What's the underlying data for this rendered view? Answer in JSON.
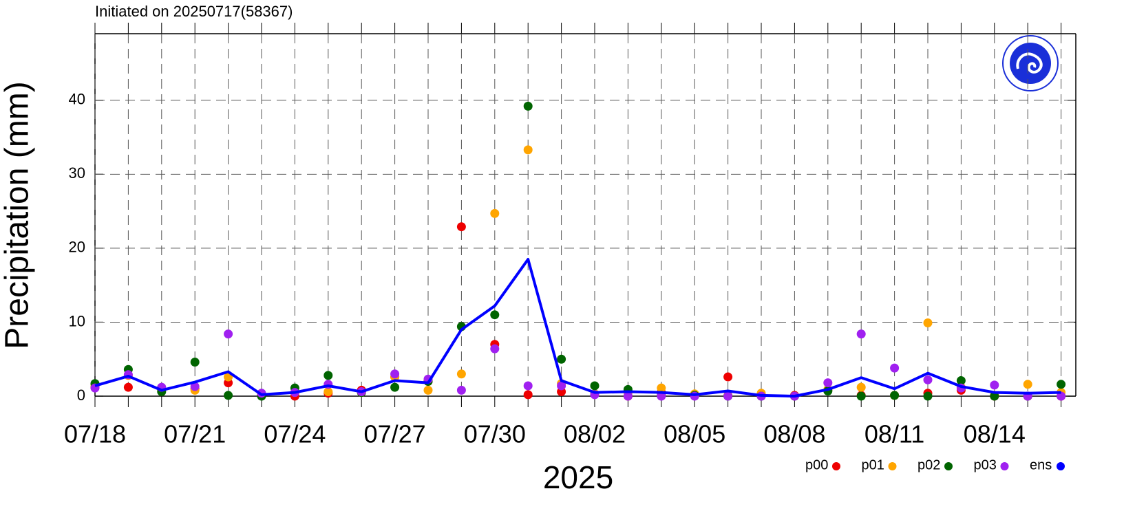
{
  "chart_data": {
    "type": "scatter",
    "title": "Initiated on 20250717(58367)",
    "y_label": "Precipitation (mm)",
    "x_label": "2025",
    "categories": [
      "07/18",
      null,
      null,
      "07/21",
      null,
      null,
      "07/24",
      null,
      null,
      "07/27",
      null,
      null,
      "07/30",
      null,
      null,
      "08/02",
      null,
      null,
      "08/05",
      null,
      null,
      "08/08",
      null,
      null,
      "08/11",
      null,
      null,
      "08/14",
      null,
      null
    ],
    "ylim": [
      0,
      49
    ],
    "yticks": [
      0,
      10,
      20,
      30,
      40
    ],
    "grid": true,
    "legend": "bottom-right",
    "series": [
      {
        "name": "p00",
        "color": "#ee0000",
        "mode": "markers",
        "values": [
          1.2,
          1.2,
          1.0,
          1.0,
          1.8,
          0.2,
          0.0,
          0.4,
          0.8,
          2.6,
          2.0,
          22.9,
          7.0,
          0.2,
          0.6,
          0.3,
          0.0,
          0.5,
          0.2,
          2.6,
          0.1,
          0.1,
          0.8,
          0.1,
          0.1,
          0.4,
          0.8,
          0.0,
          0.0,
          0.0
        ]
      },
      {
        "name": "p01",
        "color": "#ffa500",
        "mode": "markers",
        "values": [
          1.5,
          2.8,
          0.8,
          0.8,
          2.6,
          0.1,
          0.5,
          0.6,
          0.5,
          2.6,
          0.8,
          3.0,
          24.7,
          33.3,
          1.7,
          0.3,
          0.5,
          1.1,
          0.3,
          0.1,
          0.4,
          0.0,
          0.9,
          1.2,
          0.1,
          9.9,
          1.2,
          0.1,
          1.6,
          0.5
        ]
      },
      {
        "name": "p02",
        "color": "#006400",
        "mode": "markers",
        "values": [
          1.7,
          3.6,
          0.6,
          4.6,
          0.1,
          0.0,
          1.1,
          2.8,
          0.5,
          1.2,
          2.0,
          9.4,
          11.0,
          39.2,
          5.0,
          1.4,
          0.9,
          0.1,
          0.1,
          0.0,
          0.0,
          0.0,
          0.7,
          0.0,
          0.1,
          0.0,
          2.1,
          0.0,
          0.0,
          1.6
        ]
      },
      {
        "name": "p03",
        "color": "#a020f0",
        "mode": "markers",
        "values": [
          1.1,
          2.9,
          1.2,
          1.3,
          8.4,
          0.4,
          0.5,
          1.6,
          0.6,
          3.0,
          2.3,
          0.8,
          6.4,
          1.4,
          1.4,
          0.2,
          0.0,
          0.0,
          0.0,
          0.0,
          0.0,
          0.0,
          1.8,
          8.4,
          3.8,
          2.2,
          1.1,
          1.5,
          0.0,
          0.0
        ]
      },
      {
        "name": "ens",
        "color": "#0000ff",
        "mode": "lines",
        "values": [
          1.4,
          2.7,
          0.8,
          1.9,
          3.3,
          0.2,
          0.5,
          1.4,
          0.6,
          2.1,
          1.8,
          9.0,
          12.2,
          18.5,
          2.1,
          0.5,
          0.6,
          0.5,
          0.2,
          0.7,
          0.1,
          0.0,
          0.9,
          2.5,
          1.0,
          3.1,
          1.3,
          0.5,
          0.4,
          0.5
        ]
      }
    ]
  }
}
